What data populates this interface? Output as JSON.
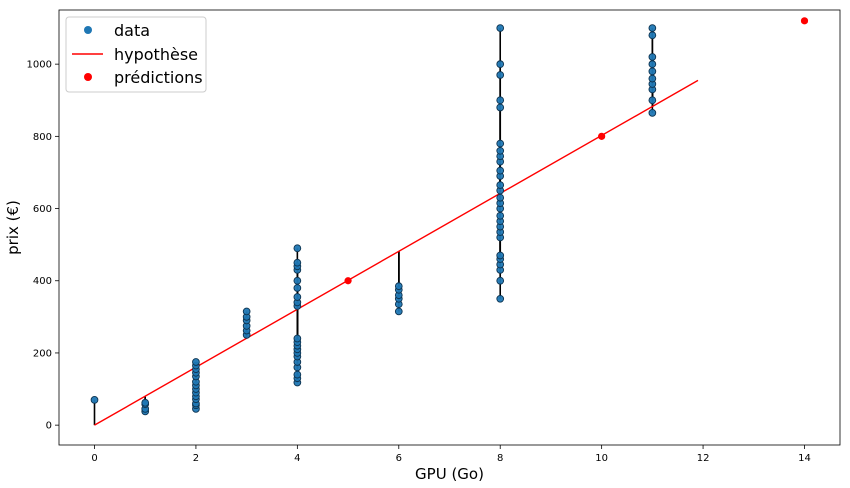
{
  "chart_data": {
    "type": "scatter",
    "xlabel": "GPU (Go)",
    "ylabel": "prix (€)",
    "xlim": [
      -0.7,
      14.7
    ],
    "ylim": [
      -55,
      1150
    ],
    "xticks": [
      0,
      2,
      4,
      6,
      8,
      10,
      12,
      14
    ],
    "yticks": [
      0,
      200,
      400,
      600,
      800,
      1000
    ],
    "grid": false,
    "legend_position": "top-left",
    "colors": {
      "data": "#1f77b4",
      "data_edge": "#0d3350",
      "hypothesis": "#ff0000",
      "predictions": "#ff0000",
      "residual": "#000000"
    },
    "series": [
      {
        "name": "data",
        "kind": "points",
        "points": [
          [
            0,
            70
          ],
          [
            1,
            38
          ],
          [
            1,
            45
          ],
          [
            1,
            58
          ],
          [
            1,
            62
          ],
          [
            2,
            45
          ],
          [
            2,
            55
          ],
          [
            2,
            60
          ],
          [
            2,
            72
          ],
          [
            2,
            80
          ],
          [
            2,
            90
          ],
          [
            2,
            100
          ],
          [
            2,
            110
          ],
          [
            2,
            120
          ],
          [
            2,
            135
          ],
          [
            2,
            145
          ],
          [
            2,
            155
          ],
          [
            2,
            165
          ],
          [
            2,
            175
          ],
          [
            3,
            250
          ],
          [
            3,
            262
          ],
          [
            3,
            275
          ],
          [
            3,
            290
          ],
          [
            3,
            300
          ],
          [
            3,
            315
          ],
          [
            4,
            118
          ],
          [
            4,
            130
          ],
          [
            4,
            140
          ],
          [
            4,
            160
          ],
          [
            4,
            175
          ],
          [
            4,
            190
          ],
          [
            4,
            200
          ],
          [
            4,
            210
          ],
          [
            4,
            220
          ],
          [
            4,
            230
          ],
          [
            4,
            240
          ],
          [
            4,
            330
          ],
          [
            4,
            340
          ],
          [
            4,
            355
          ],
          [
            4,
            380
          ],
          [
            4,
            400
          ],
          [
            4,
            430
          ],
          [
            4,
            440
          ],
          [
            4,
            450
          ],
          [
            4,
            490
          ],
          [
            6,
            315
          ],
          [
            6,
            335
          ],
          [
            6,
            350
          ],
          [
            6,
            360
          ],
          [
            6,
            375
          ],
          [
            6,
            385
          ],
          [
            8,
            350
          ],
          [
            8,
            400
          ],
          [
            8,
            430
          ],
          [
            8,
            445
          ],
          [
            8,
            460
          ],
          [
            8,
            470
          ],
          [
            8,
            520
          ],
          [
            8,
            535
          ],
          [
            8,
            550
          ],
          [
            8,
            565
          ],
          [
            8,
            580
          ],
          [
            8,
            600
          ],
          [
            8,
            615
          ],
          [
            8,
            630
          ],
          [
            8,
            650
          ],
          [
            8,
            665
          ],
          [
            8,
            690
          ],
          [
            8,
            705
          ],
          [
            8,
            730
          ],
          [
            8,
            745
          ],
          [
            8,
            760
          ],
          [
            8,
            780
          ],
          [
            8,
            880
          ],
          [
            8,
            900
          ],
          [
            8,
            970
          ],
          [
            8,
            1000
          ],
          [
            8,
            1100
          ],
          [
            11,
            865
          ],
          [
            11,
            900
          ],
          [
            11,
            930
          ],
          [
            11,
            945
          ],
          [
            11,
            960
          ],
          [
            11,
            980
          ],
          [
            11,
            1000
          ],
          [
            11,
            1020
          ],
          [
            11,
            1080
          ],
          [
            11,
            1100
          ]
        ]
      },
      {
        "name": "hypothèse",
        "kind": "line",
        "points": [
          [
            0,
            0
          ],
          [
            11.9,
            955
          ]
        ]
      },
      {
        "name": "prédictions",
        "kind": "points",
        "points": [
          [
            5,
            400
          ],
          [
            10,
            800
          ],
          [
            14,
            1120
          ]
        ]
      }
    ],
    "residuals_slope": 80.25
  }
}
